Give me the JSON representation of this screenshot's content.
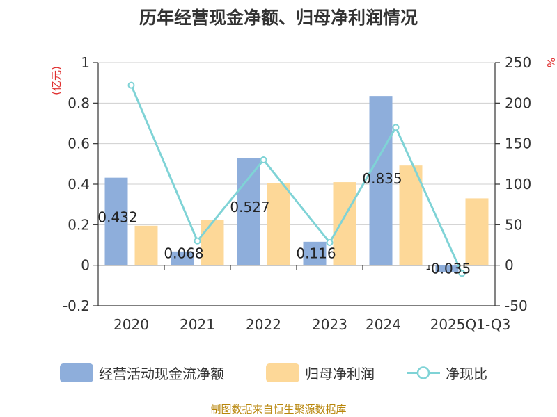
{
  "chart_data": {
    "type": "bar",
    "title": "历年经营现金净额、归母净利润情况",
    "categories": [
      "2020",
      "2021",
      "2022",
      "2023",
      "2024",
      "2025Q1-Q3"
    ],
    "ylabel": "(亿元)",
    "y2label": "%",
    "ylim": [
      -0.2,
      1
    ],
    "y2lim": [
      -50,
      250
    ],
    "yticks": [
      "1",
      "0.8",
      "0.6",
      "0.4",
      "0.2",
      "0",
      "-0.2"
    ],
    "y2ticks": [
      "250",
      "200",
      "150",
      "100",
      "50",
      "0",
      "-50"
    ],
    "grid": true,
    "legend_position": "bottom",
    "series": [
      {
        "name": "经营活动现金流净额",
        "type": "bar",
        "axis": "left",
        "color": "#8eaedb",
        "values": [
          0.432,
          0.068,
          0.527,
          0.116,
          0.835,
          -0.035
        ],
        "labels": [
          "0.432",
          "0.068",
          "0.527",
          "0.116",
          "0.835",
          "-0.035"
        ]
      },
      {
        "name": "归母净利润",
        "type": "bar",
        "axis": "left",
        "color": "#fdd898",
        "values": [
          0.195,
          0.222,
          0.405,
          0.41,
          0.492,
          0.33
        ]
      },
      {
        "name": "净现比",
        "type": "line",
        "axis": "right",
        "color": "#7fd3d6",
        "values": [
          222,
          30,
          130,
          28,
          170,
          -10
        ]
      }
    ]
  },
  "legend": {
    "items": [
      {
        "label": "经营活动现金流净额",
        "color": "#8eaedb"
      },
      {
        "label": "归母净利润",
        "color": "#fdd898"
      },
      {
        "label": "净现比",
        "color": "#7fd3d6"
      }
    ]
  },
  "source_note": "制图数据来自恒生聚源数据库"
}
